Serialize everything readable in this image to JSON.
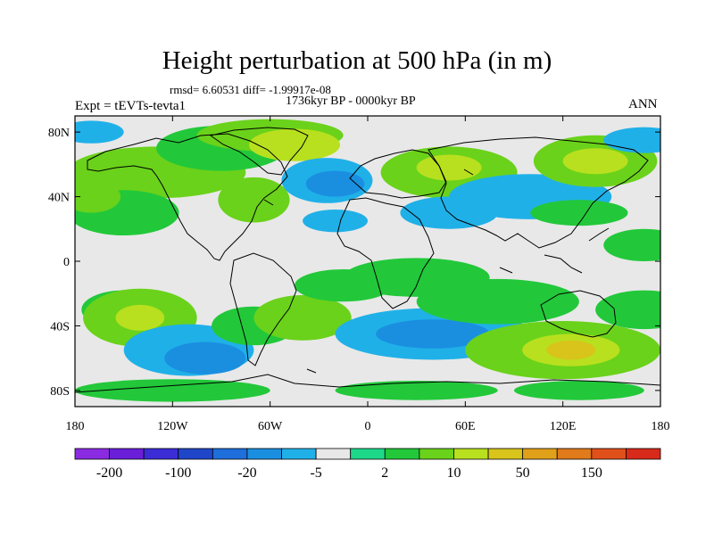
{
  "title": "Height perturbation at 500 hPa (in m)",
  "stats_line": "rmsd= 6.60531 diff= -1.99917e-08",
  "period": "1736kyr BP - 0000kyr BP",
  "experiment": "Expt = tEVTs-tevta1",
  "season": "ANN",
  "lat_ticks": [
    {
      "label": "80N",
      "lat": 80
    },
    {
      "label": "40N",
      "lat": 40
    },
    {
      "label": "0",
      "lat": 0
    },
    {
      "label": "40S",
      "lat": -40
    },
    {
      "label": "80S",
      "lat": -80
    }
  ],
  "lon_ticks": [
    {
      "label": "180",
      "lon": -180
    },
    {
      "label": "120W",
      "lon": -120
    },
    {
      "label": "60W",
      "lon": -60
    },
    {
      "label": "0",
      "lon": 0
    },
    {
      "label": "60E",
      "lon": 60
    },
    {
      "label": "120E",
      "lon": 120
    },
    {
      "label": "180",
      "lon": 180
    }
  ],
  "colorbar": {
    "colors": [
      "#8a2be2",
      "#6a1ed8",
      "#3b2cd6",
      "#1f46c9",
      "#1e6edb",
      "#1a8fe0",
      "#20b0e8",
      "#e8e8e8",
      "#1ed88a",
      "#22c83a",
      "#6ad21a",
      "#b8e01e",
      "#d8c41a",
      "#e0a01a",
      "#e07a1a",
      "#e0501a",
      "#d82a1a"
    ],
    "labels": [
      {
        "text": "-200",
        "boundary": 1
      },
      {
        "text": "-100",
        "boundary": 3
      },
      {
        "text": "-20",
        "boundary": 5
      },
      {
        "text": "-5",
        "boundary": 7
      },
      {
        "text": "2",
        "boundary": 9
      },
      {
        "text": "10",
        "boundary": 11
      },
      {
        "text": "50",
        "boundary": 13
      },
      {
        "text": "150",
        "boundary": 15
      }
    ]
  },
  "field_blobs": [
    {
      "lon": -130,
      "lat": 55,
      "rx": 55,
      "ry": 16,
      "c": 10
    },
    {
      "lon": -90,
      "lat": 70,
      "rx": 40,
      "ry": 14,
      "c": 9
    },
    {
      "lon": -60,
      "lat": 78,
      "rx": 45,
      "ry": 10,
      "c": 10
    },
    {
      "lon": -45,
      "lat": 72,
      "rx": 28,
      "ry": 10,
      "c": 11
    },
    {
      "lon": -70,
      "lat": 38,
      "rx": 22,
      "ry": 14,
      "c": 10
    },
    {
      "lon": -150,
      "lat": 30,
      "rx": 34,
      "ry": 14,
      "c": 9
    },
    {
      "lon": -170,
      "lat": 40,
      "rx": 18,
      "ry": 10,
      "c": 10
    },
    {
      "lon": -25,
      "lat": 50,
      "rx": 28,
      "ry": 14,
      "c": 6
    },
    {
      "lon": -20,
      "lat": 48,
      "rx": 18,
      "ry": 8,
      "c": 5
    },
    {
      "lon": -20,
      "lat": 25,
      "rx": 20,
      "ry": 7,
      "c": 6
    },
    {
      "lon": 50,
      "lat": 55,
      "rx": 42,
      "ry": 16,
      "c": 10
    },
    {
      "lon": 50,
      "lat": 58,
      "rx": 20,
      "ry": 8,
      "c": 11
    },
    {
      "lon": 50,
      "lat": 30,
      "rx": 30,
      "ry": 10,
      "c": 6
    },
    {
      "lon": 100,
      "lat": 40,
      "rx": 50,
      "ry": 14,
      "c": 6
    },
    {
      "lon": 140,
      "lat": 62,
      "rx": 38,
      "ry": 16,
      "c": 10
    },
    {
      "lon": 140,
      "lat": 62,
      "rx": 20,
      "ry": 8,
      "c": 11
    },
    {
      "lon": 170,
      "lat": 75,
      "rx": 25,
      "ry": 8,
      "c": 6
    },
    {
      "lon": -170,
      "lat": 80,
      "rx": 20,
      "ry": 7,
      "c": 6
    },
    {
      "lon": 130,
      "lat": 30,
      "rx": 30,
      "ry": 8,
      "c": 9
    },
    {
      "lon": -150,
      "lat": -30,
      "rx": 26,
      "ry": 12,
      "c": 9
    },
    {
      "lon": -140,
      "lat": -35,
      "rx": 35,
      "ry": 18,
      "c": 10
    },
    {
      "lon": -140,
      "lat": -35,
      "rx": 15,
      "ry": 8,
      "c": 11
    },
    {
      "lon": -110,
      "lat": -55,
      "rx": 40,
      "ry": 16,
      "c": 6
    },
    {
      "lon": -100,
      "lat": -60,
      "rx": 25,
      "ry": 10,
      "c": 5
    },
    {
      "lon": -70,
      "lat": -40,
      "rx": 26,
      "ry": 12,
      "c": 9
    },
    {
      "lon": -40,
      "lat": -35,
      "rx": 30,
      "ry": 14,
      "c": 10
    },
    {
      "lon": -15,
      "lat": -15,
      "rx": 30,
      "ry": 10,
      "c": 9
    },
    {
      "lon": 30,
      "lat": -10,
      "rx": 45,
      "ry": 12,
      "c": 9
    },
    {
      "lon": 40,
      "lat": -45,
      "rx": 60,
      "ry": 16,
      "c": 6
    },
    {
      "lon": 40,
      "lat": -45,
      "rx": 35,
      "ry": 9,
      "c": 5
    },
    {
      "lon": 80,
      "lat": -25,
      "rx": 50,
      "ry": 14,
      "c": 9
    },
    {
      "lon": 120,
      "lat": -55,
      "rx": 60,
      "ry": 18,
      "c": 10
    },
    {
      "lon": 125,
      "lat": -55,
      "rx": 30,
      "ry": 10,
      "c": 11
    },
    {
      "lon": 125,
      "lat": -55,
      "rx": 15,
      "ry": 6,
      "c": 12
    },
    {
      "lon": 170,
      "lat": -30,
      "rx": 30,
      "ry": 12,
      "c": 9
    },
    {
      "lon": -120,
      "lat": -80,
      "rx": 60,
      "ry": 7,
      "c": 9
    },
    {
      "lon": 30,
      "lat": -80,
      "rx": 50,
      "ry": 6,
      "c": 9
    },
    {
      "lon": 130,
      "lat": -80,
      "rx": 40,
      "ry": 6,
      "c": 9
    },
    {
      "lon": 170,
      "lat": 10,
      "rx": 25,
      "ry": 10,
      "c": 9
    }
  ]
}
